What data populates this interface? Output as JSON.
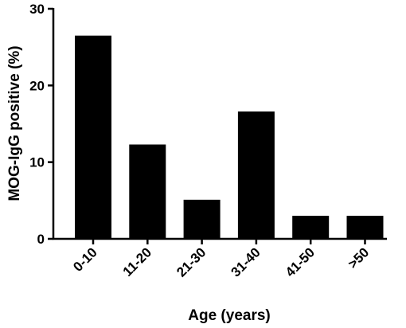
{
  "chart_data": {
    "type": "bar",
    "x_label": "Age (years)",
    "y_label": "MOG-IgG positive (%)",
    "categories": [
      "0-10",
      "11-20",
      "21-30",
      "31-40",
      "41-50",
      ">50"
    ],
    "values": [
      26.5,
      12.3,
      5.1,
      16.6,
      3.0,
      3.0
    ],
    "color": "#000000",
    "ylim": [
      0,
      30
    ],
    "yticks": [
      0,
      10,
      20,
      30
    ]
  }
}
